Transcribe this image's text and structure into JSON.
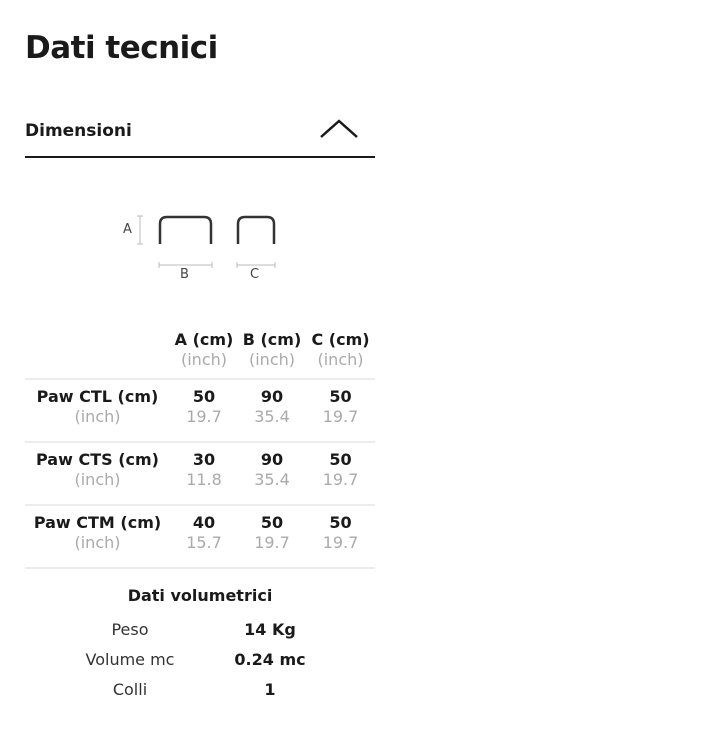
{
  "title": "Dati tecnici",
  "accordion": {
    "label": "Dimensioni",
    "icon": "chevron-up-icon",
    "expanded": true
  },
  "diagram": {
    "labels": [
      "A",
      "B",
      "C"
    ]
  },
  "table": {
    "headers": [
      {
        "main": "A (cm)",
        "sub": "(inch)"
      },
      {
        "main": "B (cm)",
        "sub": "(inch)"
      },
      {
        "main": "C (cm)",
        "sub": "(inch)"
      }
    ],
    "rows": [
      {
        "name": "Paw CTL (cm)",
        "sub": "(inch)",
        "cm": [
          "50",
          "90",
          "50"
        ],
        "inch": [
          "19.7",
          "35.4",
          "19.7"
        ]
      },
      {
        "name": "Paw CTS (cm)",
        "sub": "(inch)",
        "cm": [
          "30",
          "90",
          "50"
        ],
        "inch": [
          "11.8",
          "35.4",
          "19.7"
        ]
      },
      {
        "name": "Paw CTM (cm)",
        "sub": "(inch)",
        "cm": [
          "40",
          "50",
          "50"
        ],
        "inch": [
          "15.7",
          "19.7",
          "19.7"
        ]
      }
    ]
  },
  "volumetric": {
    "title": "Dati volumetrici",
    "rows": [
      {
        "label": "Peso",
        "value": "14 Kg"
      },
      {
        "label": "Volume mc",
        "value": "0.24 mc"
      },
      {
        "label": "Colli",
        "value": "1"
      }
    ]
  }
}
